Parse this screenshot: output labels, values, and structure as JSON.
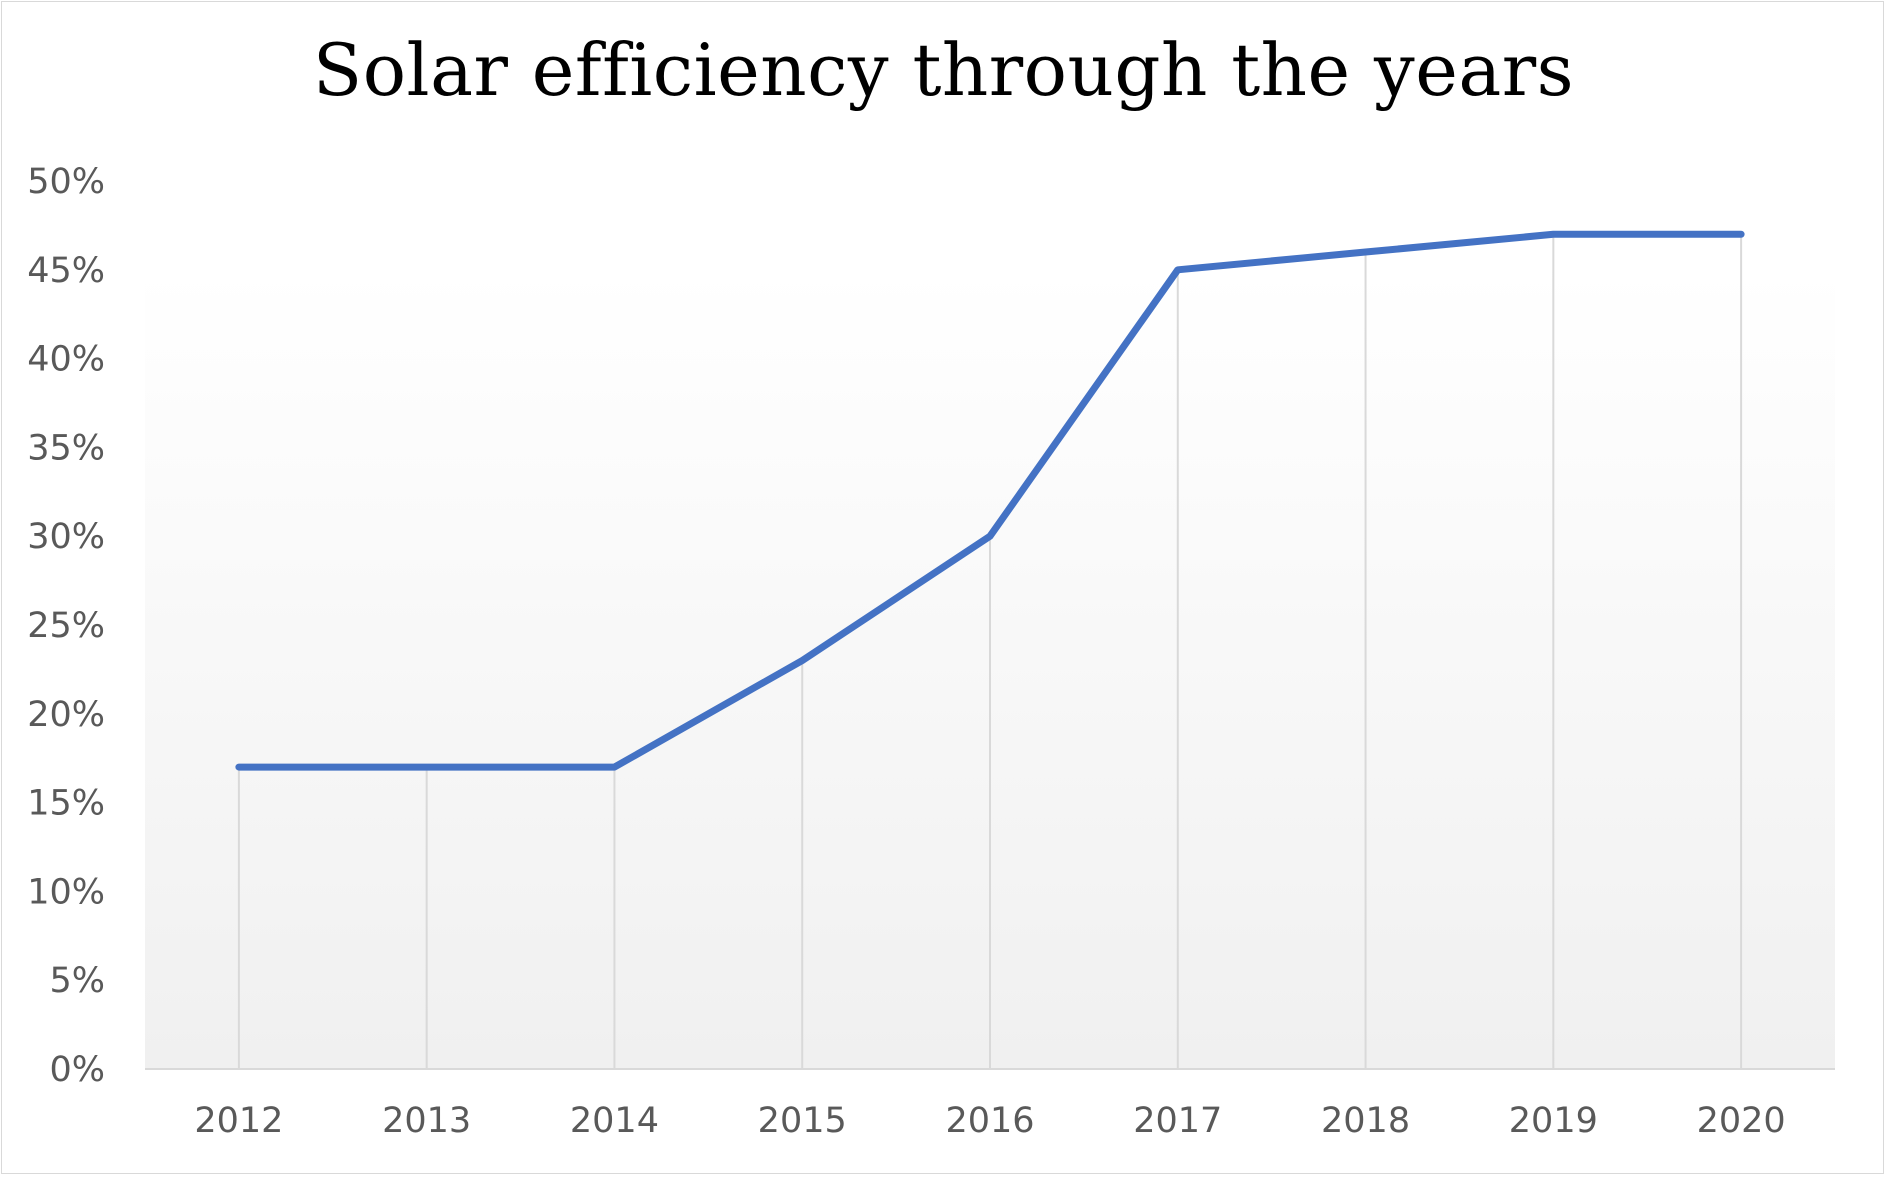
{
  "chart_data": {
    "type": "line",
    "title": "Solar efficiency through the years",
    "xlabel": "",
    "ylabel": "",
    "categories": [
      "2012",
      "2013",
      "2014",
      "2015",
      "2016",
      "2017",
      "2018",
      "2019",
      "2020"
    ],
    "series": [
      {
        "values": [
          17,
          17,
          17,
          23,
          30,
          45,
          46,
          47,
          47
        ],
        "color": "#4472c4"
      }
    ],
    "ylim": [
      0,
      50
    ],
    "y_ticks": [
      0,
      5,
      10,
      15,
      20,
      25,
      30,
      35,
      40,
      45,
      50
    ],
    "y_tick_labels": [
      "0%",
      "5%",
      "10%",
      "15%",
      "20%",
      "25%",
      "30%",
      "35%",
      "40%",
      "45%",
      "50%"
    ],
    "grid": "vertical drop lines at each category",
    "legend": "none",
    "plot_background": "light gray vertical gradient"
  }
}
